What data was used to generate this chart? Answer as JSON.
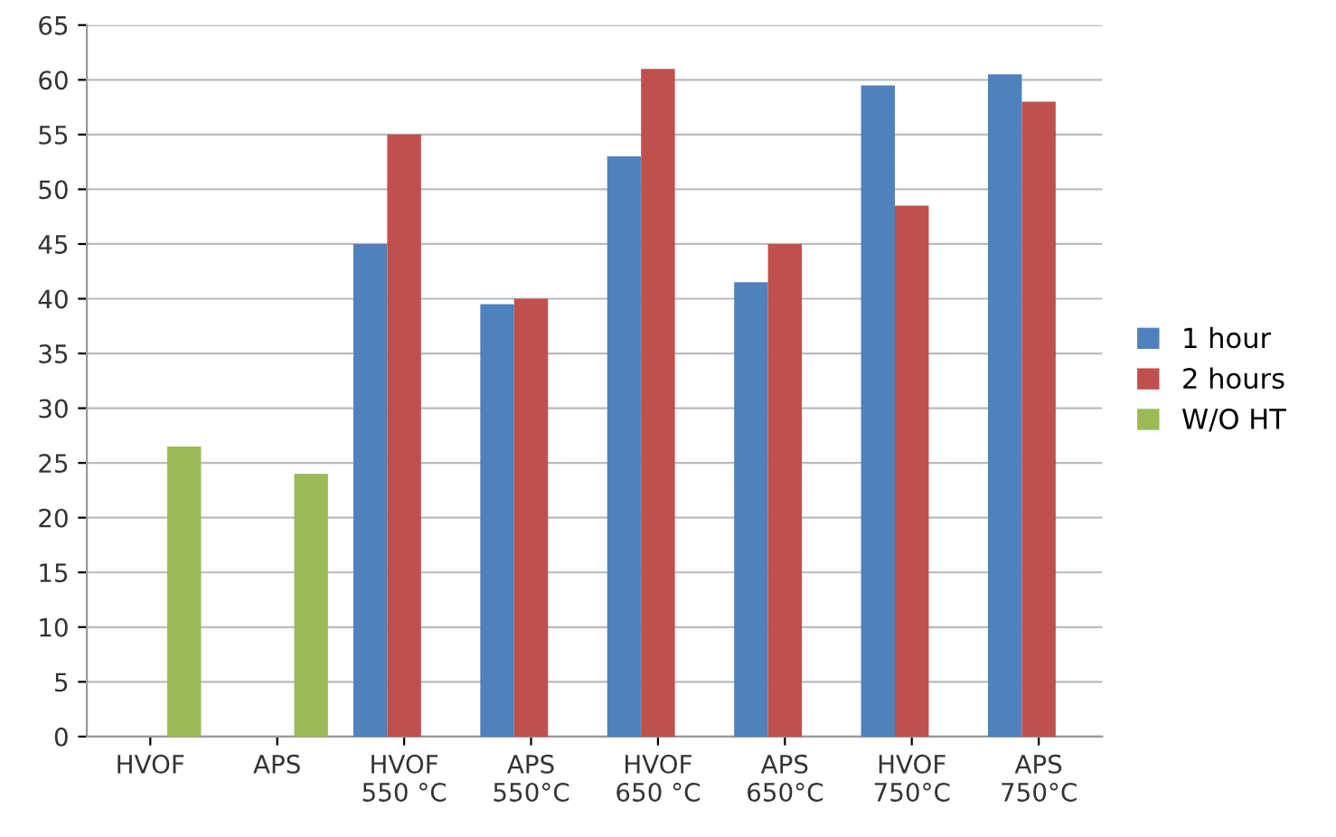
{
  "chart_data": {
    "type": "bar",
    "categories": [
      "HVOF",
      "APS",
      "HVOF\n550 °C",
      "APS\n550°C",
      "HVOF\n650 °C",
      "APS\n650°C",
      "HVOF\n750°C",
      "APS\n750°C"
    ],
    "series": [
      {
        "name": "1 hour",
        "color": "#4f81bd",
        "values": [
          null,
          null,
          45,
          39.5,
          53,
          41.5,
          59.5,
          60.5
        ]
      },
      {
        "name": "2 hours",
        "color": "#c0504d",
        "values": [
          null,
          null,
          55,
          40,
          61,
          45,
          48.5,
          58
        ]
      },
      {
        "name": "W/O HT",
        "color": "#9bbb59",
        "values": [
          26.5,
          24,
          null,
          null,
          null,
          null,
          null,
          null
        ]
      }
    ],
    "ylim": [
      0,
      65
    ],
    "yticks": [
      0,
      5,
      10,
      15,
      20,
      25,
      30,
      35,
      40,
      45,
      50,
      55,
      60,
      65
    ],
    "grid": "y",
    "legend": "right"
  }
}
